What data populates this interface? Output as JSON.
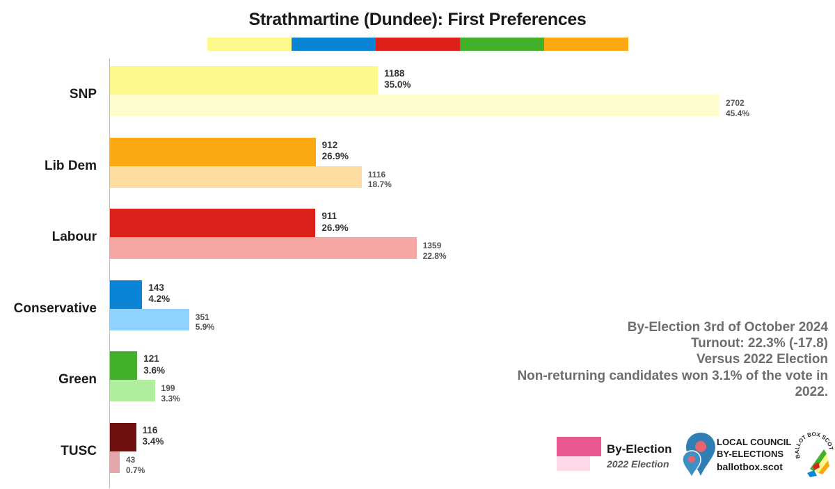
{
  "title": "Strathmartine (Dundee): First Preferences",
  "color_strip": [
    "#fdf88a",
    "#0a85d6",
    "#dc211b",
    "#42b02b",
    "#fba813"
  ],
  "chart_data": {
    "type": "bar",
    "orientation": "horizontal",
    "title": "Strathmartine (Dundee): First Preferences",
    "xlim": [
      0,
      2800
    ],
    "categories": [
      "SNP",
      "Lib Dem",
      "Labour",
      "Conservative",
      "Green",
      "TUSC"
    ],
    "series": [
      {
        "name": "By-Election",
        "values": [
          1188,
          912,
          911,
          143,
          121,
          116
        ],
        "percent_labels": [
          "35.0%",
          "26.9%",
          "26.9%",
          "4.2%",
          "3.6%",
          "3.4%"
        ],
        "colors": [
          "#fdf88a",
          "#fba813",
          "#dc211b",
          "#0a85d6",
          "#42b02b",
          "#6e100f"
        ]
      },
      {
        "name": "2022 Election",
        "values": [
          2702,
          1116,
          1359,
          351,
          199,
          43
        ],
        "percent_labels": [
          "45.4%",
          "18.7%",
          "22.8%",
          "5.9%",
          "3.3%",
          "0.7%"
        ],
        "colors": [
          "#fefccd",
          "#fcdc9f",
          "#f5a6a3",
          "#8ed2fe",
          "#aeee9c",
          "#e4a7a9"
        ]
      }
    ]
  },
  "info": {
    "line1": "By-Election 3rd of October 2024",
    "line2": "Turnout: 22.3% (-17.8)",
    "line3": "Versus 2022 Election",
    "line4": "Non-returning candidates won 3.1% of the vote in",
    "line5": "2022."
  },
  "legend": {
    "by_election": "By-Election",
    "by_election_color": "#e8578f",
    "previous": "2022 Election",
    "previous_color": "#fcd9e8"
  },
  "brand": {
    "line1": "LOCAL COUNCIL",
    "line2": "BY-ELECTIONS",
    "url": "ballotbox.scot",
    "seal_text": "BALLOT BOX SCOTLAND"
  }
}
